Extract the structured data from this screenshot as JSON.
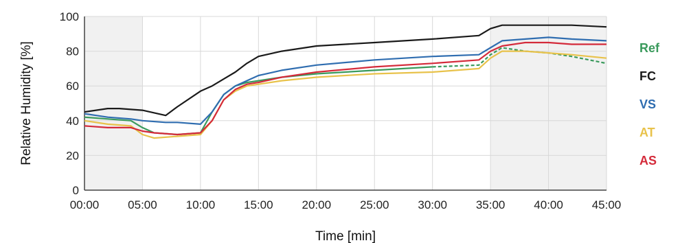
{
  "chart_data": {
    "type": "line",
    "xlabel": "Time [min]",
    "ylabel": "Relative Humidity  [%]",
    "xlim": [
      0,
      45
    ],
    "ylim": [
      0,
      100
    ],
    "x_ticks": [
      "00:00",
      "05:00",
      "10:00",
      "15:00",
      "20:00",
      "25:00",
      "30:00",
      "35:00",
      "40:00",
      "45:00"
    ],
    "y_ticks": [
      "0",
      "20",
      "40",
      "60",
      "80",
      "100"
    ],
    "grid": true,
    "shaded_intervals": [
      [
        0,
        5
      ],
      [
        35,
        45
      ]
    ],
    "legend_position": "right",
    "series": [
      {
        "name": "Ref",
        "color": "#3a9a5c",
        "dashed_after": 34,
        "x": [
          0,
          2,
          4,
          5,
          6,
          8,
          10,
          11,
          12,
          13,
          14,
          15,
          17,
          20,
          25,
          30,
          34,
          35,
          36,
          38,
          40,
          42,
          45
        ],
        "y": [
          42,
          41,
          40,
          36,
          33,
          32,
          33,
          45,
          55,
          60,
          62,
          63,
          65,
          67,
          69,
          71,
          72,
          78,
          82,
          80,
          79,
          77,
          73
        ]
      },
      {
        "name": "FC",
        "color": "#1a1a1a",
        "x": [
          0,
          2,
          3,
          5,
          7,
          8,
          10,
          11,
          12,
          13,
          14,
          15,
          17,
          20,
          25,
          30,
          34,
          35,
          36,
          38,
          40,
          42,
          45
        ],
        "y": [
          45,
          47,
          47,
          46,
          43,
          48,
          57,
          60,
          64,
          68,
          73,
          77,
          80,
          83,
          85,
          87,
          89,
          93,
          95,
          95,
          95,
          95,
          94
        ]
      },
      {
        "name": "VS",
        "color": "#2f6db0",
        "x": [
          0,
          2,
          4,
          5,
          7,
          8,
          10,
          11,
          12,
          13,
          14,
          15,
          17,
          20,
          25,
          30,
          34,
          35,
          36,
          38,
          40,
          42,
          45
        ],
        "y": [
          44,
          42,
          41,
          40,
          39,
          39,
          38,
          45,
          55,
          60,
          63,
          66,
          69,
          72,
          75,
          77,
          78,
          82,
          86,
          87,
          88,
          87,
          86
        ]
      },
      {
        "name": "AT",
        "color": "#e8c24a",
        "x": [
          0,
          2,
          4,
          5,
          6,
          8,
          10,
          11,
          12,
          13,
          14,
          15,
          17,
          20,
          25,
          30,
          34,
          35,
          36,
          38,
          40,
          42,
          45
        ],
        "y": [
          40,
          38,
          37,
          32,
          30,
          31,
          32,
          40,
          52,
          57,
          60,
          61,
          63,
          65,
          67,
          68,
          70,
          76,
          80,
          80,
          79,
          78,
          76
        ]
      },
      {
        "name": "AS",
        "color": "#d42a3a",
        "x": [
          0,
          2,
          4,
          5,
          6,
          8,
          10,
          11,
          12,
          13,
          14,
          15,
          17,
          20,
          25,
          30,
          34,
          35,
          36,
          38,
          40,
          42,
          45
        ],
        "y": [
          37,
          36,
          36,
          34,
          33,
          32,
          33,
          40,
          52,
          58,
          61,
          62,
          65,
          68,
          71,
          73,
          75,
          80,
          83,
          85,
          85,
          84,
          84
        ]
      }
    ]
  }
}
